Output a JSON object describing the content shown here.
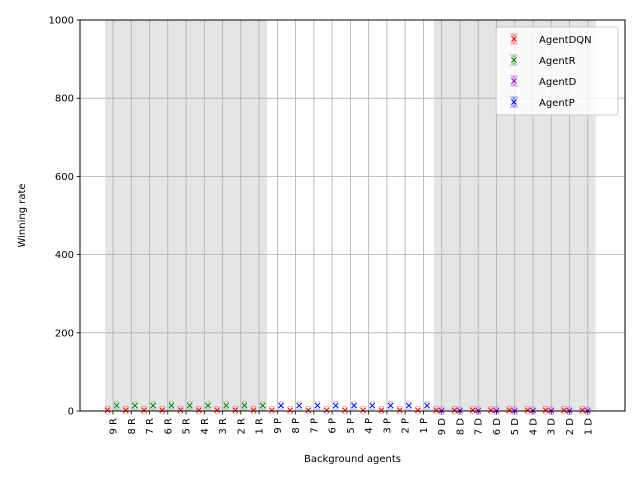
{
  "chart_data": {
    "type": "scatter",
    "xlabel": "Background agents",
    "ylabel": "Winning rate",
    "ylim": [
      0,
      1000
    ],
    "yticks": [
      0,
      200,
      400,
      600,
      800,
      1000
    ],
    "grid": true,
    "legend_placement": "top-right",
    "categories": [
      "9 R",
      "8 R",
      "7 R",
      "6 R",
      "5 R",
      "4 R",
      "3 R",
      "2 R",
      "1 R",
      "9 P",
      "8 P",
      "7 P",
      "6 P",
      "5 P",
      "4 P",
      "3 P",
      "2 P",
      "1 P",
      "9 D",
      "8 D",
      "7 D",
      "6 D",
      "5 D",
      "4 D",
      "3 D",
      "2 D",
      "1 D"
    ],
    "shaded_groups": [
      [
        0,
        8
      ],
      [
        18,
        26
      ]
    ],
    "series": [
      {
        "name": "AgentDQN",
        "color": "#ff0000",
        "offset": -0.3,
        "values": [
          2,
          2,
          2,
          2,
          2,
          2,
          2,
          2,
          2,
          2,
          2,
          2,
          2,
          2,
          2,
          2,
          2,
          2,
          2,
          2,
          2,
          2,
          2,
          2,
          2,
          2,
          2
        ]
      },
      {
        "name": "AgentR",
        "color": "#008000",
        "offset": 0.2,
        "values": [
          14,
          14,
          14,
          14,
          14,
          14,
          14,
          14,
          14,
          null,
          null,
          null,
          null,
          null,
          null,
          null,
          null,
          null,
          null,
          null,
          null,
          null,
          null,
          null,
          null,
          null,
          null
        ]
      },
      {
        "name": "AgentD",
        "color": "#9400d3",
        "offset": 0.0,
        "values": [
          null,
          null,
          null,
          null,
          null,
          null,
          null,
          null,
          null,
          null,
          null,
          null,
          null,
          null,
          null,
          null,
          null,
          null,
          1,
          1,
          1,
          1,
          1,
          1,
          1,
          1,
          1
        ]
      },
      {
        "name": "AgentP",
        "color": "#0000ff",
        "offset": 0.2,
        "values": [
          null,
          null,
          null,
          null,
          null,
          null,
          null,
          null,
          null,
          14,
          14,
          14,
          14,
          14,
          14,
          14,
          14,
          14,
          null,
          null,
          null,
          null,
          null,
          null,
          null,
          null,
          null
        ]
      }
    ]
  }
}
